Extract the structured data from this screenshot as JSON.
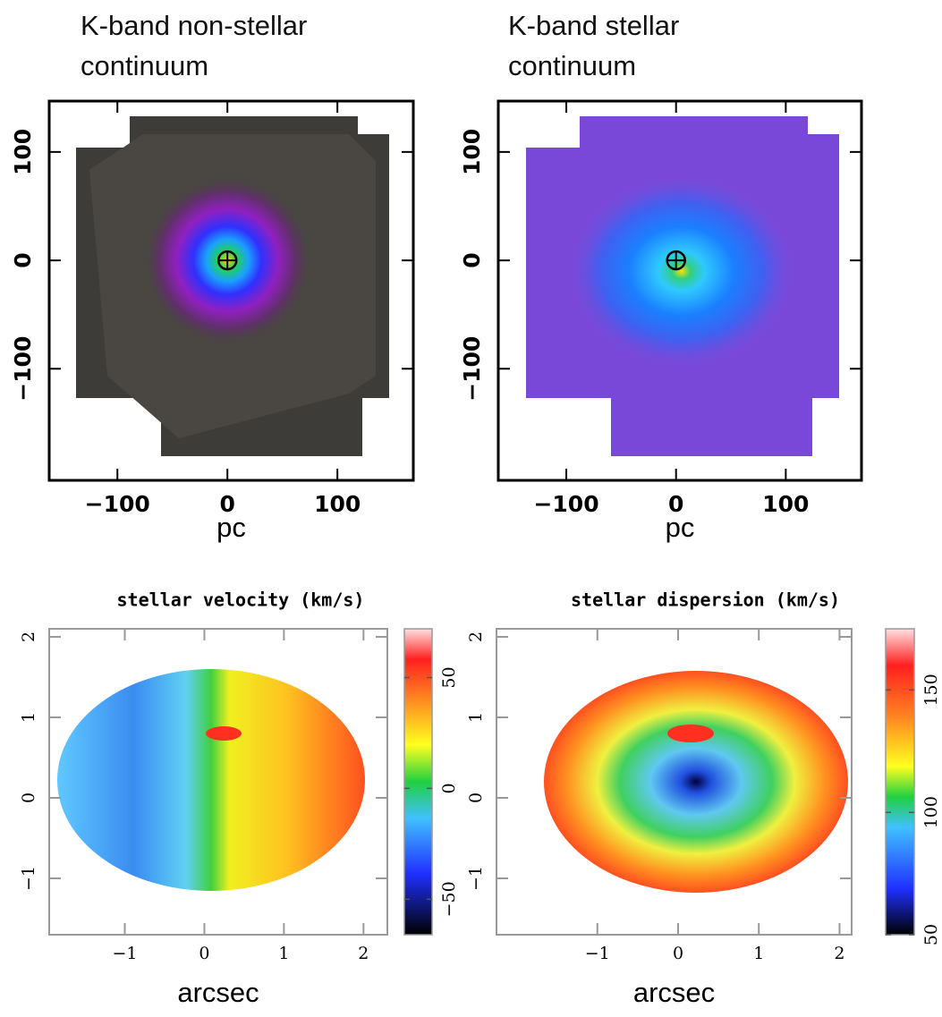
{
  "chart_data": [
    {
      "type": "image",
      "title": "K-band non-stellar continuum",
      "xlabel": "pc",
      "xlim": [
        -162,
        169
      ],
      "xticks": [
        {
          "value": -100,
          "label": "−100"
        },
        0,
        100
      ],
      "ylim": [
        -203,
        147
      ],
      "yticks": [
        {
          "value": -100,
          "label": "−100"
        },
        0,
        100
      ]
    },
    {
      "type": "image",
      "title": "K-band stellar continuum",
      "xlabel": "pc",
      "xlim": [
        -162,
        169
      ],
      "xticks": [
        {
          "value": -100,
          "label": "−100"
        },
        0,
        100
      ],
      "ylim": [
        -203,
        147
      ],
      "yticks": [
        {
          "value": -100,
          "label": "−100"
        },
        0,
        100
      ]
    },
    {
      "type": "image",
      "title": "stellar velocity (km/s)",
      "xlabel": "arcsec",
      "xlim": [
        -1.95,
        2.3
      ],
      "xticks": [
        {
          "value": -1,
          "label": "−1"
        },
        0,
        1,
        2
      ],
      "ylim": [
        -1.7,
        2.1
      ],
      "yticks": [
        {
          "value": -1,
          "label": "−1"
        },
        0,
        1,
        2
      ],
      "colorbar": {
        "clim": [
          -66,
          72
        ],
        "ticks": [
          {
            "value": -50,
            "label": "−50"
          },
          0,
          50
        ]
      }
    },
    {
      "type": "image",
      "title": "stellar dispersion (km/s)",
      "xlabel": "arcsec",
      "xlim": [
        -2.25,
        2.15
      ],
      "xticks": [
        {
          "value": -1,
          "label": "−1"
        },
        0,
        1,
        2
      ],
      "ylim": [
        -1.7,
        2.1
      ],
      "yticks": [
        {
          "value": -1,
          "label": "−1"
        },
        0,
        1,
        2
      ],
      "colorbar": {
        "clim": [
          50,
          175
        ],
        "ticks": [
          50,
          100,
          150
        ]
      }
    }
  ]
}
